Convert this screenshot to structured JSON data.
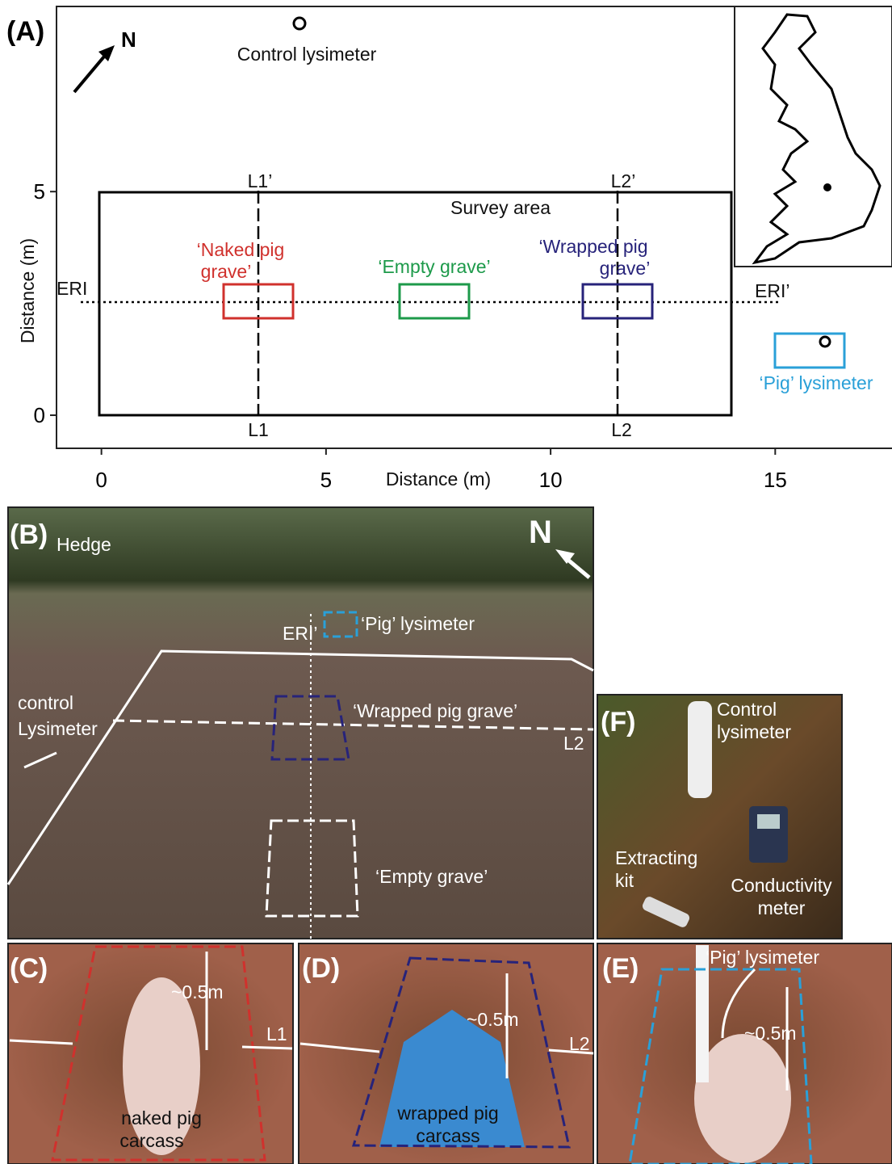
{
  "panel_a": {
    "label": "(A)",
    "north": "N",
    "control_lysimeter": "Control lysimeter",
    "survey_area": "Survey area",
    "naked_grave": [
      "‘Naked pig",
      "grave’"
    ],
    "empty_grave": "‘Empty grave’",
    "wrapped_grave": [
      "‘Wrapped pig",
      "grave’"
    ],
    "eri_start": "ERI",
    "eri_end": "ERI’",
    "l1_top": "L1’",
    "l1_bottom": "L1",
    "l2_top": "L2’",
    "l2_bottom": "L2",
    "pig_lysimeter": "‘Pig’ lysimeter",
    "x_label": "Distance (m)",
    "y_label": "Distance (m)",
    "xlim": [
      -1,
      17.6
    ],
    "ylim": [
      -0.74,
      9.14
    ],
    "xticks": [
      0,
      5,
      10,
      15
    ],
    "yticks": [
      0,
      5
    ]
  },
  "panel_b": {
    "label": "(B)",
    "hedge": "Hedge",
    "north": "N",
    "pig_lysimeter": "‘Pig’ lysimeter",
    "eri": "ERI’",
    "control": [
      "control",
      "Lysimeter"
    ],
    "wrapped_grave": "‘Wrapped pig grave’",
    "l2": "L2",
    "empty_grave": "‘Empty grave’"
  },
  "panel_f": {
    "label": "(F)",
    "control": [
      "Control",
      "lysimeter"
    ],
    "kit": [
      "Extracting",
      "kit"
    ],
    "meter": [
      "Conductivity",
      "meter"
    ]
  },
  "panel_c": {
    "label": "(C)",
    "depth": "~0.5m",
    "line": "L1",
    "caption": [
      "naked pig",
      "carcass"
    ]
  },
  "panel_d": {
    "label": "(D)",
    "depth": "~0.5m",
    "line": "L2",
    "caption": [
      "wrapped pig",
      "carcass"
    ]
  },
  "panel_e": {
    "label": "(E)",
    "lysimeter": "‘Pig’ lysimeter",
    "depth": "~0.5m"
  }
}
